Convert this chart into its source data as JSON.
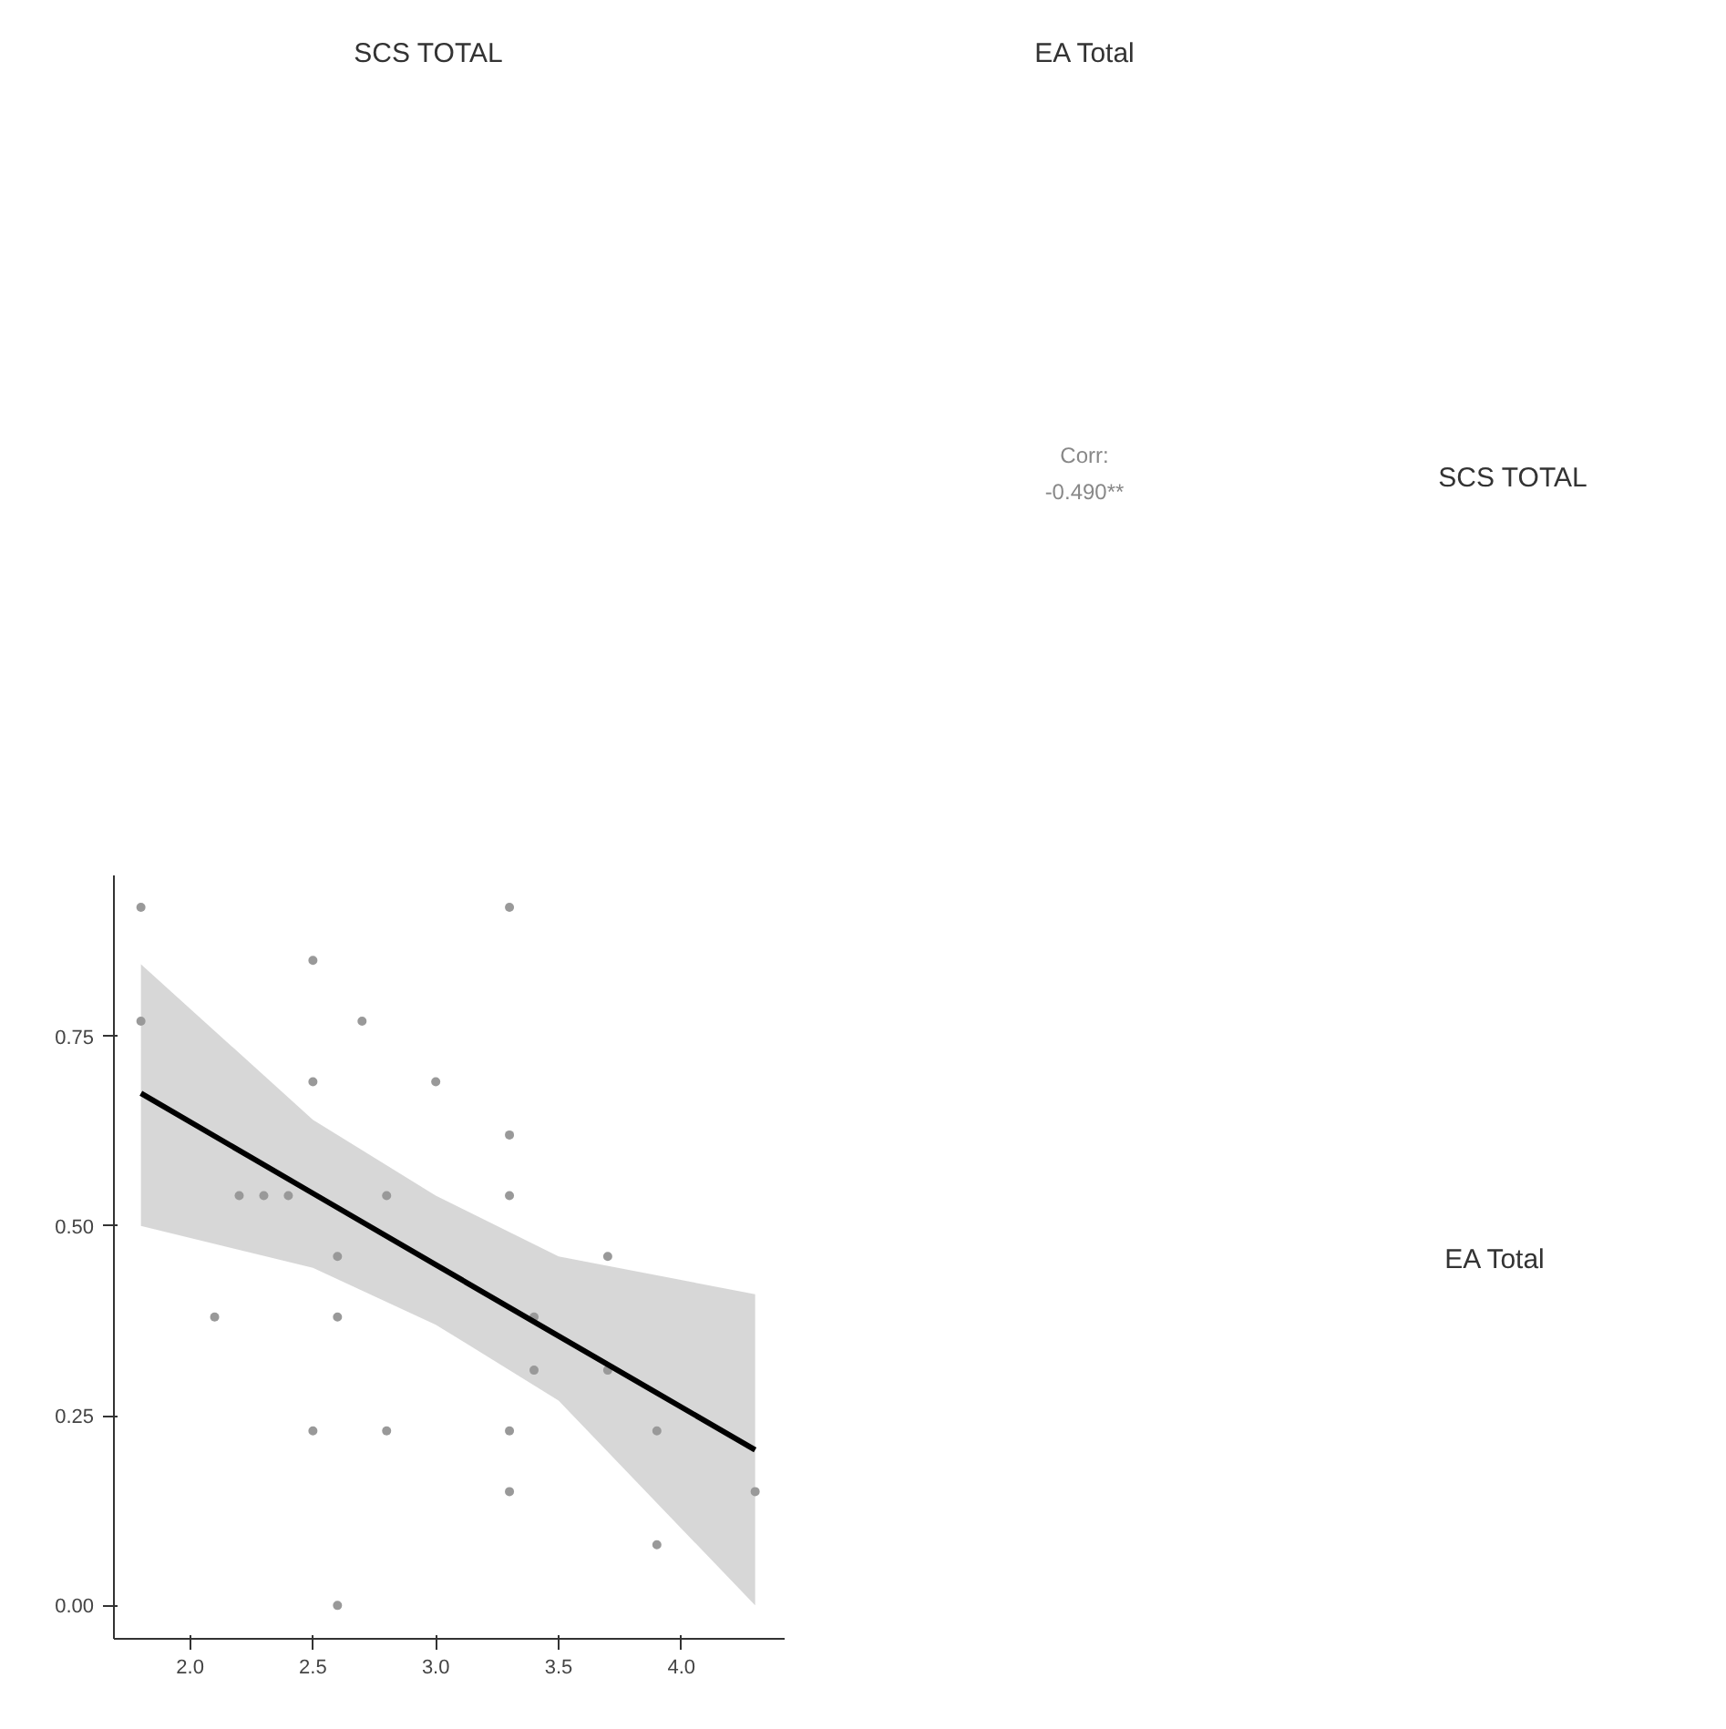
{
  "chart_data": {
    "type": "scatter",
    "annotations": [
      "SCS TOTAL",
      "EA Total",
      "SCS TOTAL",
      "EA Total",
      "Corr:",
      "-0.490**"
    ],
    "xlim": [
      1.69,
      4.42
    ],
    "ylim": [
      -0.044,
      0.962
    ],
    "xticks": [
      {
        "value": 2,
        "label": "2.0"
      },
      {
        "value": 2.5,
        "label": "2.5"
      },
      {
        "value": 3,
        "label": "3.0"
      },
      {
        "value": 3.5,
        "label": "3.5"
      },
      {
        "value": 4,
        "label": "4.0"
      }
    ],
    "yticks": [
      {
        "value": 0,
        "label": "0.00"
      },
      {
        "value": 0.25,
        "label": "0.25"
      },
      {
        "value": 0.5,
        "label": "0.50"
      },
      {
        "value": 0.75,
        "label": "0.75"
      }
    ],
    "grid": false,
    "series": [
      {
        "color": "#999999",
        "marker": "circle",
        "x": [
          1.8,
          1.8,
          2.5,
          2.7,
          2.5,
          3.0,
          3.3,
          3.3,
          3.3,
          2.2,
          2.3,
          2.4,
          2.8,
          2.6,
          3.7,
          2.1,
          2.6,
          3.4,
          3.4,
          3.7,
          2.5,
          2.8,
          3.3,
          3.9,
          3.3,
          4.3,
          3.9,
          2.6
        ],
        "values": [
          0.92,
          0.77,
          0.85,
          0.77,
          0.69,
          0.69,
          0.92,
          0.62,
          0.54,
          0.54,
          0.54,
          0.54,
          0.54,
          0.46,
          0.46,
          0.38,
          0.38,
          0.38,
          0.31,
          0.31,
          0.23,
          0.23,
          0.23,
          0.23,
          0.15,
          0.15,
          0.08,
          0.0
        ]
      },
      {
        "type": "line",
        "marker": "none",
        "color": "#000000",
        "x": [
          1.8,
          2.5,
          3.0,
          3.5,
          4.3
        ],
        "values": [
          0.675,
          0.543,
          0.449,
          0.355,
          0.205
        ],
        "lower": [
          0.5,
          0.445,
          0.37,
          0.27,
          0.0
        ],
        "upper": [
          0.845,
          0.64,
          0.54,
          0.46,
          0.41
        ]
      }
    ]
  }
}
